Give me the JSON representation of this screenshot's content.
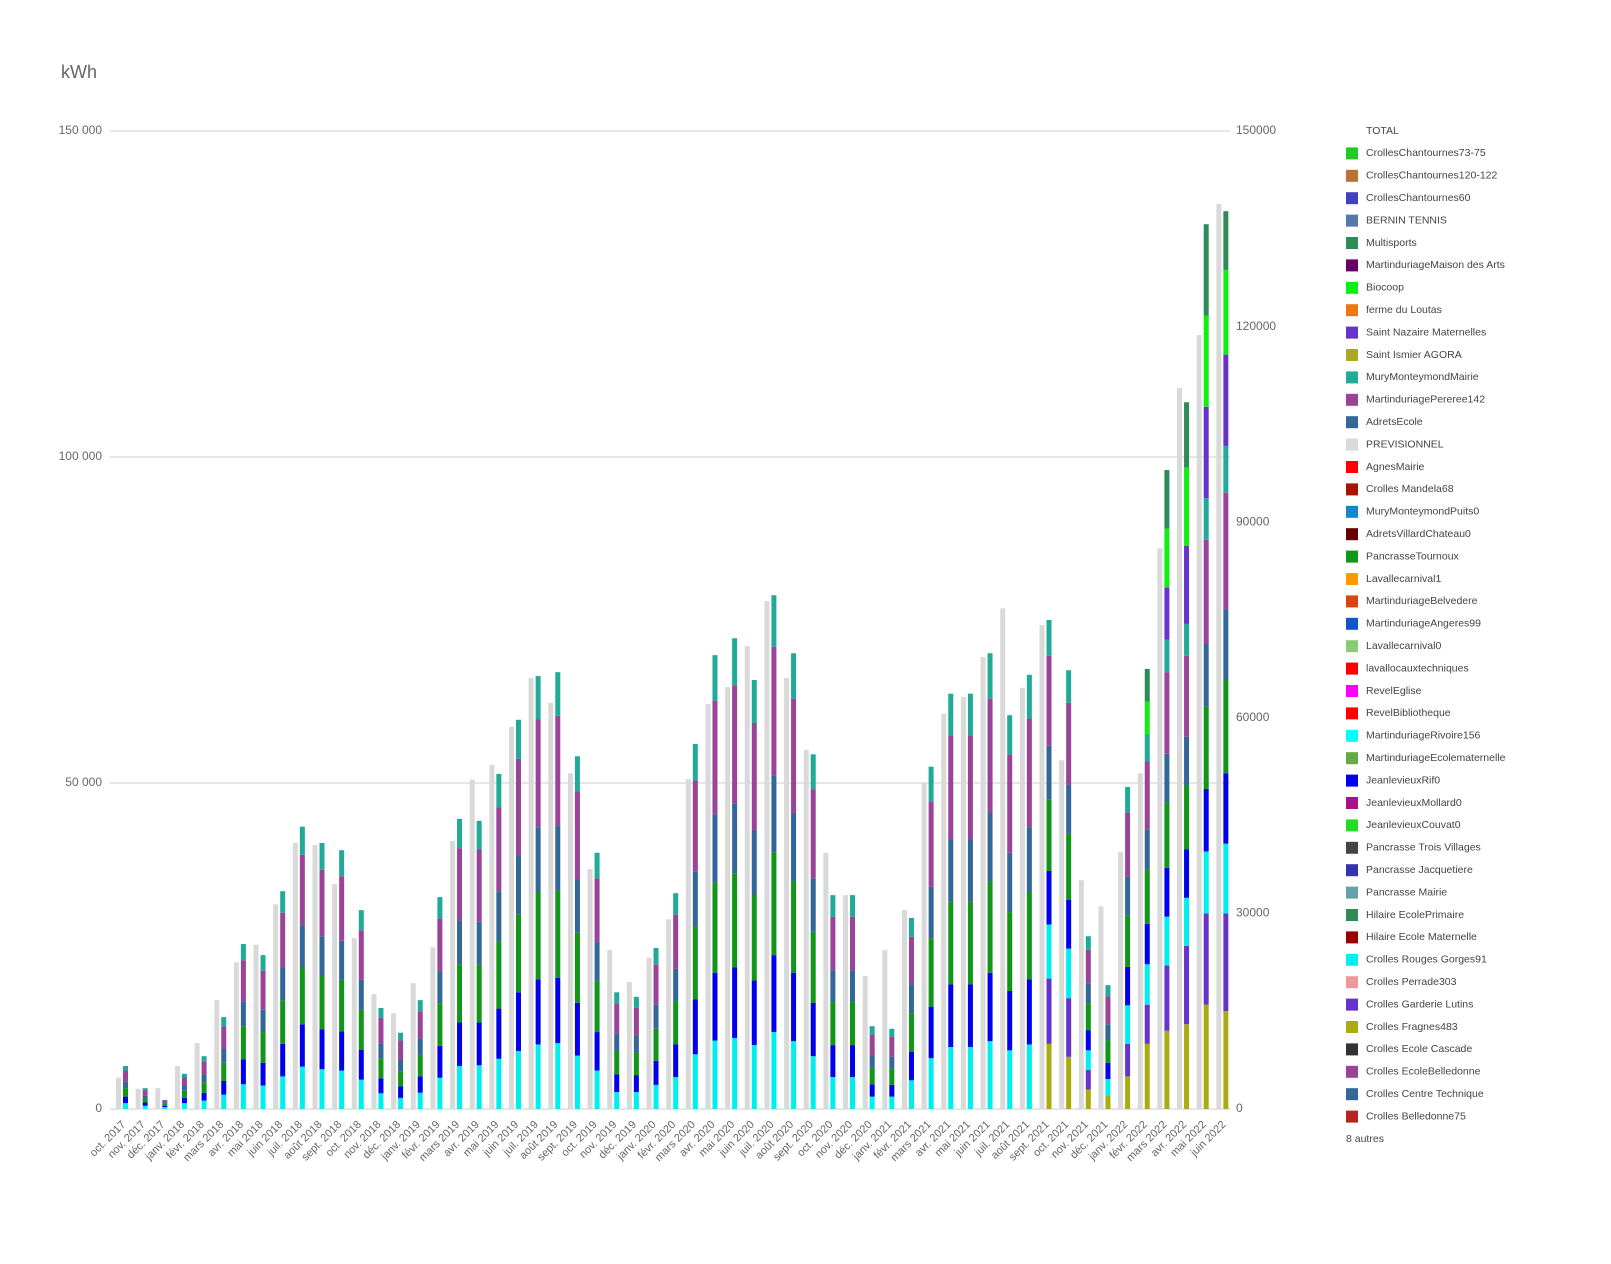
{
  "chart_data": {
    "type": "stacked-bar",
    "title": "kWh",
    "total_legend": "TOTAL",
    "others_legend": "8 autres",
    "categories": [
      "oct. 2017",
      "nov. 2017",
      "déc. 2017",
      "janv. 2018",
      "févr. 2018",
      "mars 2018",
      "avr. 2018",
      "mai 2018",
      "juin 2018",
      "juil. 2018",
      "août 2018",
      "sept. 2018",
      "oct. 2018",
      "nov. 2018",
      "déc. 2018",
      "janv. 2019",
      "févr. 2019",
      "mars 2019",
      "avr. 2019",
      "mai 2019",
      "juin 2019",
      "juil. 2019",
      "août 2019",
      "sept. 2019",
      "oct. 2019",
      "nov. 2019",
      "déc. 2019",
      "janv. 2020",
      "févr. 2020",
      "mars 2020",
      "avr. 2020",
      "mai 2020",
      "juin 2020",
      "juil. 2020",
      "août 2020",
      "sept. 2020",
      "oct. 2020",
      "nov. 2020",
      "déc. 2020",
      "janv. 2021",
      "févr. 2021",
      "mars 2021",
      "avr. 2021",
      "mai 2021",
      "juin 2021",
      "juil. 2021",
      "août 2021",
      "sept. 2021",
      "oct. 2021",
      "nov. 2021",
      "déc. 2021",
      "janv. 2022",
      "févr. 2022",
      "mars 2022",
      "avr. 2022",
      "mai 2022",
      "juin 2022"
    ],
    "ylim": [
      0,
      150000
    ],
    "yticks": [
      {
        "value": 0,
        "label": "0"
      },
      {
        "value": 50000,
        "label": "50 000"
      },
      {
        "value": 100000,
        "label": "100 000"
      },
      {
        "value": 150000,
        "label": "150 000"
      }
    ],
    "y2lim": [
      0,
      150000
    ],
    "y2ticks": [
      0,
      30000,
      60000,
      90000,
      120000,
      150000
    ],
    "grid": true,
    "series": [
      {
        "name": "CrollesChantournes73-75",
        "color": "#22cc22"
      },
      {
        "name": "CrollesChantournes120-122",
        "color": "#b87333"
      },
      {
        "name": "CrollesChantournes60",
        "color": "#4040c0"
      },
      {
        "name": "BERNIN TENNIS",
        "color": "#5577aa"
      },
      {
        "name": "Multisports",
        "color": "#2e8b57",
        "values": [
          0,
          0,
          0,
          0,
          0,
          0,
          0,
          0,
          0,
          0,
          0,
          0,
          0,
          0,
          0,
          0,
          0,
          0,
          0,
          0,
          0,
          0,
          0,
          0,
          0,
          0,
          0,
          0,
          0,
          0,
          0,
          0,
          0,
          0,
          0,
          0,
          0,
          0,
          0,
          0,
          0,
          0,
          0,
          0,
          0,
          0,
          0,
          0,
          0,
          0,
          0,
          0,
          5000,
          9000,
          10000,
          14000,
          9000
        ]
      },
      {
        "name": "MartinduriageMaison des Arts",
        "color": "#660066"
      },
      {
        "name": "Biocoop",
        "color": "#11ee11",
        "values": [
          0,
          0,
          0,
          0,
          0,
          0,
          0,
          0,
          0,
          0,
          0,
          0,
          0,
          0,
          0,
          0,
          0,
          0,
          0,
          0,
          0,
          0,
          0,
          0,
          0,
          0,
          0,
          0,
          0,
          0,
          0,
          0,
          0,
          0,
          0,
          0,
          0,
          0,
          0,
          0,
          0,
          0,
          0,
          0,
          0,
          0,
          0,
          0,
          0,
          0,
          0,
          0,
          5000,
          9000,
          12000,
          14000,
          13000
        ]
      },
      {
        "name": "ferme du Loutas",
        "color": "#ee7711"
      },
      {
        "name": "Saint Nazaire Maternelles",
        "color": "#6633cc",
        "values": [
          0,
          0,
          0,
          0,
          0,
          0,
          0,
          0,
          0,
          0,
          0,
          0,
          0,
          0,
          0,
          0,
          0,
          0,
          0,
          0,
          0,
          0,
          0,
          0,
          0,
          0,
          0,
          0,
          0,
          0,
          0,
          0,
          0,
          0,
          0,
          0,
          0,
          0,
          0,
          0,
          0,
          0,
          0,
          0,
          0,
          0,
          0,
          0,
          0,
          0,
          0,
          0,
          0,
          8000,
          12000,
          14000,
          14000
        ]
      },
      {
        "name": "Saint Ismier AGORA",
        "color": "#aaaa22"
      },
      {
        "name": "MuryMonteymondMairie",
        "color": "#22aa99",
        "values": [
          700,
          300,
          100,
          500,
          800,
          1400,
          2500,
          2400,
          3300,
          4300,
          4100,
          4000,
          3100,
          1500,
          1200,
          1700,
          3300,
          4500,
          4400,
          5100,
          6000,
          6600,
          6700,
          5400,
          3900,
          1800,
          1700,
          2500,
          3300,
          5600,
          7000,
          7200,
          6600,
          7900,
          7000,
          5400,
          3300,
          3300,
          1300,
          1200,
          2900,
          5300,
          6400,
          6400,
          7000,
          6000,
          6700,
          5500,
          5000,
          2100,
          1700,
          3900,
          4200,
          5000,
          4900,
          6400,
          7200
        ]
      },
      {
        "name": "MartinduriagePereree142",
        "color": "#994499",
        "values": [
          1700,
          800,
          300,
          1300,
          2000,
          3500,
          6300,
          5900,
          8400,
          10800,
          10200,
          9900,
          7600,
          3900,
          2900,
          4200,
          8100,
          11100,
          11100,
          12900,
          14900,
          16600,
          16800,
          13500,
          9800,
          4500,
          4300,
          6200,
          8300,
          14000,
          17400,
          18100,
          16400,
          19700,
          17500,
          13600,
          8200,
          8200,
          3200,
          3100,
          7300,
          13100,
          15900,
          15900,
          17500,
          15100,
          16700,
          13800,
          12600,
          5100,
          4300,
          9900,
          10400,
          12500,
          12400,
          15900,
          17900
        ]
      },
      {
        "name": "AdretsEcole",
        "color": "#336699",
        "values": [
          1000,
          500,
          200,
          800,
          1200,
          2100,
          3800,
          3500,
          5000,
          6500,
          6100,
          6000,
          4600,
          2300,
          1800,
          2500,
          4900,
          6700,
          6600,
          7700,
          9000,
          10000,
          10000,
          8100,
          5900,
          2700,
          2600,
          3700,
          5000,
          8400,
          10400,
          10800,
          9900,
          11800,
          10500,
          8200,
          4900,
          4900,
          1900,
          1800,
          4400,
          7900,
          9600,
          9600,
          10500,
          9100,
          10000,
          8200,
          7500,
          3100,
          2500,
          5900,
          6200,
          7500,
          7400,
          9600,
          10800
        ]
      },
      {
        "name": "PREVISIONNEL",
        "color": "#d9d9d9",
        "stacked": false,
        "values": [
          4800,
          3100,
          3200,
          6600,
          10100,
          16700,
          22500,
          25200,
          31400,
          40800,
          40500,
          34500,
          26200,
          17600,
          14700,
          19300,
          24800,
          41100,
          50500,
          52800,
          58600,
          66100,
          62300,
          51500,
          36800,
          24400,
          19500,
          23200,
          29100,
          50600,
          62100,
          64700,
          71000,
          77900,
          66100,
          55100,
          39300,
          32800,
          20400,
          24400,
          30500,
          50000,
          60600,
          63200,
          69300,
          76800,
          64600,
          74200,
          53500,
          35100,
          31100,
          39400,
          51500,
          86000,
          110600,
          118700,
          138800
        ]
      },
      {
        "name": "AgnesMairie",
        "color": "#ff0000"
      },
      {
        "name": "Crolles Mandela68",
        "color": "#aa1100"
      },
      {
        "name": "MuryMonteymondPuits0",
        "color": "#1188cc"
      },
      {
        "name": "AdretsVillardChateau0",
        "color": "#660000"
      },
      {
        "name": "PancrasseTournoux",
        "color": "#109618",
        "values": [
          1300,
          600,
          300,
          1100,
          1600,
          2800,
          5100,
          4700,
          6700,
          8700,
          8200,
          7900,
          6100,
          3100,
          2300,
          3300,
          6500,
          8900,
          8800,
          10300,
          11900,
          13300,
          13400,
          10800,
          7900,
          3600,
          3400,
          4900,
          6600,
          11200,
          13900,
          14400,
          13200,
          15800,
          14000,
          10900,
          6600,
          6600,
          2500,
          2500,
          5900,
          10500,
          12700,
          12700,
          14000,
          12100,
          13300,
          11000,
          10100,
          4100,
          3400,
          7900,
          8300,
          10000,
          9900,
          12700,
          14300
        ]
      },
      {
        "name": "Lavallecarnival1",
        "color": "#ff9900"
      },
      {
        "name": "MartinduriageBelvedere",
        "color": "#dd4411"
      },
      {
        "name": "MartinduriageAngeres99",
        "color": "#1155cc"
      },
      {
        "name": "Lavallecarnival0",
        "color": "#88cc77"
      },
      {
        "name": "lavallocauxtechniques",
        "color": "#ff0000"
      },
      {
        "name": "RevelEglise",
        "color": "#ff00ff"
      },
      {
        "name": "RevelBibliotheque",
        "color": "#ff0000"
      },
      {
        "name": "MartinduriageRivoire156",
        "color": "#00ffff"
      },
      {
        "name": "MartinduriageEcolematernelle",
        "color": "#66aa44"
      },
      {
        "name": "JeanlevieuxRif0",
        "color": "#0000ee",
        "values": [
          1000,
          500,
          200,
          800,
          1200,
          2100,
          3800,
          3500,
          5000,
          6500,
          6100,
          6000,
          4600,
          2300,
          1800,
          2500,
          4900,
          6700,
          6600,
          7700,
          9000,
          10000,
          10000,
          8100,
          5900,
          2700,
          2600,
          3700,
          5000,
          8400,
          10400,
          10800,
          9900,
          11800,
          10500,
          8200,
          4900,
          4900,
          1900,
          1800,
          4400,
          7900,
          9600,
          9600,
          10500,
          9100,
          10000,
          8200,
          7500,
          3100,
          2500,
          5900,
          6200,
          7500,
          7400,
          9600,
          10800
        ]
      },
      {
        "name": "JeanlevieuxMollard0",
        "color": "#aa1188"
      },
      {
        "name": "JeanlevieuxCouvat0",
        "color": "#22dd22"
      },
      {
        "name": "Pancrasse Trois Villages",
        "color": "#444444"
      },
      {
        "name": "Pancrasse Jacquetiere",
        "color": "#3333aa"
      },
      {
        "name": "Pancrasse Mairie",
        "color": "#66a0aa"
      },
      {
        "name": "Hilaire EcolePrimaire",
        "color": "#338855"
      },
      {
        "name": "Hilaire Ecole Maternelle",
        "color": "#990000"
      },
      {
        "name": "Crolles Rouges Gorges91",
        "color": "#00eeee",
        "values": [
          900,
          500,
          300,
          900,
          1300,
          2200,
          3800,
          3600,
          5000,
          6500,
          6100,
          5900,
          4500,
          2400,
          1700,
          2500,
          4800,
          6600,
          6700,
          7700,
          8900,
          9900,
          10100,
          8200,
          5900,
          2600,
          2600,
          3700,
          4900,
          8400,
          10500,
          10900,
          9800,
          11800,
          10400,
          8100,
          4900,
          4900,
          1900,
          1900,
          4400,
          7800,
          9500,
          9500,
          10400,
          9000,
          9900,
          8300,
          7600,
          3000,
          2600,
          5900,
          6200,
          7500,
          7400,
          9500,
          10700
        ]
      },
      {
        "name": "Crolles Perrade303",
        "color": "#ee9999"
      },
      {
        "name": "Crolles Garderie Lutins",
        "color": "#6633cc",
        "values": [
          0,
          0,
          0,
          0,
          0,
          0,
          0,
          0,
          0,
          0,
          0,
          0,
          0,
          0,
          0,
          0,
          0,
          0,
          0,
          0,
          0,
          0,
          0,
          0,
          0,
          0,
          0,
          0,
          0,
          0,
          0,
          0,
          0,
          0,
          0,
          0,
          0,
          0,
          0,
          0,
          0,
          0,
          0,
          0,
          0,
          0,
          0,
          10000,
          9000,
          3000,
          0,
          5000,
          6000,
          10000,
          12000,
          14000,
          15000
        ]
      },
      {
        "name": "Crolles Fragnes483",
        "color": "#aaaa11",
        "values": [
          0,
          0,
          0,
          0,
          0,
          0,
          0,
          0,
          0,
          0,
          0,
          0,
          0,
          0,
          0,
          0,
          0,
          0,
          0,
          0,
          0,
          0,
          0,
          0,
          0,
          0,
          0,
          0,
          0,
          0,
          0,
          0,
          0,
          0,
          0,
          0,
          0,
          0,
          0,
          0,
          0,
          0,
          0,
          0,
          0,
          0,
          0,
          10000,
          8000,
          3000,
          2000,
          5000,
          10000,
          12000,
          13000,
          16000,
          15000
        ]
      },
      {
        "name": "Crolles Ecole Cascade",
        "color": "#333333"
      },
      {
        "name": "Crolles EcoleBelledonne",
        "color": "#994499"
      },
      {
        "name": "Crolles Centre Technique",
        "color": "#336699"
      },
      {
        "name": "Crolles Belledonne75",
        "color": "#bb2222"
      }
    ]
  }
}
